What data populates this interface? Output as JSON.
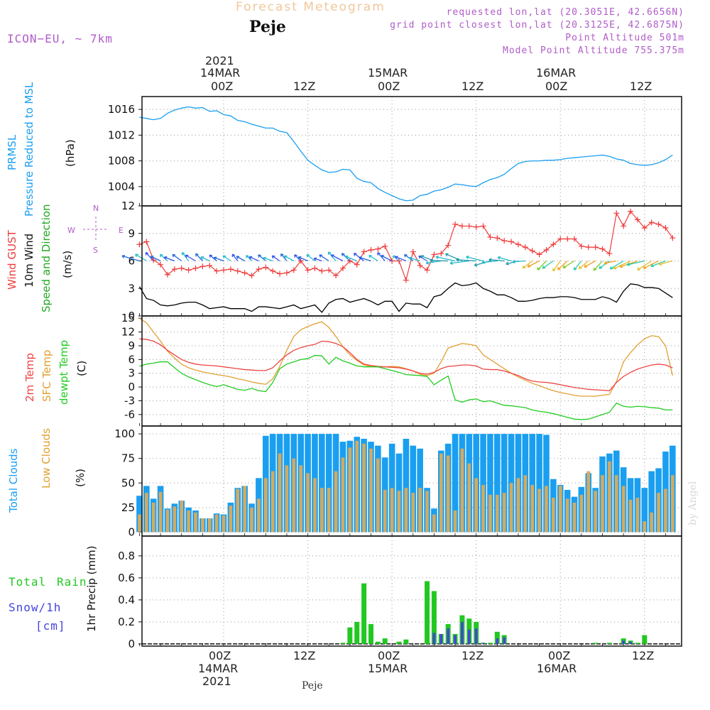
{
  "header": {
    "title": "Forecast Meteogram",
    "location": "Peje",
    "model": "ICON−EU, ~ 7km",
    "requested": "requested lon,lat (20.3051E, 42.6656N)",
    "grid_point": "grid point closest lon,lat (20.3125E, 42.6875N)",
    "point_altitude": "Point Altitude 501m",
    "model_altitude": "Model Point Altitude 755.375m"
  },
  "time_axis": {
    "top_year": "2021",
    "date_labels": [
      "14MAR",
      "15MAR",
      "16MAR"
    ],
    "hour_labels": [
      "00Z",
      "12Z",
      "00Z",
      "12Z",
      "00Z",
      "12Z"
    ],
    "bottom_date_labels": [
      "14MAR",
      "15MAR",
      "16MAR"
    ],
    "bottom_year": "2021",
    "footer": "Peje"
  },
  "panel_labels": {
    "pressure": [
      "PRMSL",
      "Pressure Reduced to MSL",
      "(hPa)"
    ],
    "wind": [
      "Wind GUST",
      "10m Wind",
      "Speed and Direction",
      "(m/s)"
    ],
    "compass": [
      "N",
      "W",
      "E",
      "S"
    ],
    "temp": [
      "2m Temp",
      "SFC Temp",
      "dewpt Temp",
      "(C)"
    ],
    "clouds": [
      "Total Clouds",
      "Low Clouds",
      "(%)"
    ],
    "precip": [
      "Total",
      "Rain",
      "Snow/1h",
      "[cm]",
      "1hr Precip (mm)"
    ]
  },
  "watermark": "by Angel",
  "colors": {
    "pressure": "#1a9ff0",
    "gust": "#ee3c3c",
    "wind": "#000000",
    "temp2m": "#ee4444",
    "sfc": "#e0a030",
    "dewpt": "#22cc22",
    "total_cloud": "#1a9ff0",
    "low_cloud": "#d4aa60",
    "rain": "#22c822",
    "snow": "#4444dd",
    "label_purple": "#b05cc8"
  },
  "chart_data": [
    {
      "type": "line",
      "name": "pressure",
      "ylabel": "PRMSL Pressure Reduced to MSL (hPa)",
      "ylim": [
        1001,
        1018
      ],
      "yticks": [
        1004,
        1008,
        1012,
        1016
      ],
      "x": [
        -12,
        -11,
        -10,
        -9,
        -8,
        -7,
        -6,
        -5,
        -4,
        -3,
        -2,
        -1,
        0,
        1,
        2,
        3,
        4,
        5,
        6,
        7,
        8,
        9,
        10,
        11,
        12,
        13,
        14,
        15,
        16,
        17,
        18,
        19,
        20,
        21,
        22,
        23,
        24,
        25,
        26,
        27,
        28,
        29,
        30,
        31,
        32,
        33,
        34,
        35,
        36,
        37,
        38,
        39,
        40,
        41,
        42,
        43,
        44,
        45,
        46,
        47,
        48,
        49,
        50,
        51,
        52,
        53,
        54,
        55,
        56,
        57,
        58,
        59,
        60,
        61,
        62,
        63,
        64
      ],
      "values": [
        1014.8,
        1014.6,
        1014.4,
        1014.6,
        1015.4,
        1015.9,
        1016.2,
        1016.4,
        1016.2,
        1016.3,
        1015.7,
        1015.8,
        1015.2,
        1015.0,
        1014.3,
        1014.1,
        1013.7,
        1013.4,
        1013.1,
        1013.1,
        1012.6,
        1012.4,
        1011.0,
        1009.5,
        1008.1,
        1007.3,
        1006.6,
        1006.2,
        1006.3,
        1006.7,
        1006.6,
        1005.3,
        1004.8,
        1004.6,
        1003.7,
        1003.1,
        1002.6,
        1002.1,
        1001.8,
        1001.9,
        1002.6,
        1002.8,
        1003.3,
        1003.5,
        1003.9,
        1004.4,
        1004.3,
        1004.1,
        1004.0,
        1004.6,
        1005.1,
        1005.4,
        1005.9,
        1006.8,
        1007.6,
        1007.9,
        1008.0,
        1008.0,
        1008.1,
        1008.1,
        1008.2,
        1008.4,
        1008.5,
        1008.6,
        1008.7,
        1008.8,
        1008.9,
        1008.7,
        1008.3,
        1008.1,
        1007.6,
        1007.4,
        1007.3,
        1007.4,
        1007.7,
        1008.2,
        1008.9
      ]
    },
    {
      "type": "line",
      "name": "wind",
      "ylabel": "Wind GUST / 10m Wind Speed and Direction (m/s)",
      "ylim": [
        0,
        12
      ],
      "yticks": [
        0,
        3,
        6,
        9,
        12
      ],
      "gust_x": [
        -12,
        -11,
        -10,
        -9,
        -8,
        -7,
        -6,
        -5,
        -4,
        -3,
        -2,
        -1,
        0,
        1,
        2,
        3,
        4,
        5,
        6,
        7,
        8,
        9,
        10,
        11,
        12,
        13,
        14,
        15,
        16,
        17,
        18,
        19,
        20,
        21,
        22,
        23,
        24,
        25,
        26,
        27,
        28,
        29,
        30,
        31,
        32,
        33,
        34,
        35,
        36,
        37,
        38,
        39,
        40,
        41,
        42,
        43,
        44,
        45,
        46,
        47,
        48,
        49,
        50,
        51,
        52,
        53,
        54,
        55,
        56,
        57,
        58,
        59,
        60,
        61,
        62,
        63,
        64
      ],
      "gust": [
        7.8,
        8.1,
        6.1,
        5.6,
        4.5,
        5.1,
        5.2,
        5.0,
        5.2,
        5.4,
        5.5,
        4.9,
        5.0,
        5.1,
        4.9,
        4.7,
        4.4,
        5.1,
        5.3,
        4.9,
        4.6,
        4.7,
        5.0,
        6.0,
        5.0,
        5.2,
        4.9,
        5.0,
        4.4,
        5.2,
        6.0,
        5.6,
        7.0,
        7.2,
        7.3,
        7.6,
        6.0,
        6.0,
        3.9,
        7.0,
        5.5,
        5.0,
        6.7,
        6.8,
        7.7,
        10.0,
        9.8,
        9.8,
        9.7,
        9.8,
        8.6,
        8.5,
        8.2,
        8.1,
        7.8,
        7.5,
        7.1,
        6.7,
        7.2,
        7.8,
        8.4,
        8.4,
        8.4,
        7.6,
        7.5,
        7.5,
        7.3,
        6.8,
        11.2,
        9.8,
        11.4,
        10.5,
        9.6,
        10.2,
        10.0,
        9.6,
        8.5
      ],
      "speed": [
        3.2,
        1.9,
        1.7,
        1.2,
        1.1,
        1.2,
        1.4,
        1.5,
        1.5,
        1.2,
        0.8,
        0.9,
        1.0,
        0.8,
        0.8,
        0.8,
        0.5,
        1.0,
        1.0,
        0.9,
        0.8,
        1.0,
        1.2,
        0.8,
        1.0,
        1.2,
        0.4,
        1.4,
        1.8,
        1.9,
        1.5,
        1.7,
        1.9,
        1.6,
        1.2,
        1.6,
        1.6,
        0.5,
        1.4,
        1.3,
        1.3,
        0.9,
        2.1,
        2.3,
        3.0,
        3.6,
        3.3,
        3.4,
        3.6,
        3.0,
        2.7,
        2.3,
        2.3,
        2.0,
        1.6,
        1.6,
        1.7,
        1.9,
        2.0,
        2.0,
        2.1,
        2.1,
        2.0,
        1.8,
        1.8,
        1.8,
        2.1,
        1.9,
        1.5,
        2.7,
        3.5,
        3.4,
        3.1,
        3.1,
        3.0,
        2.5,
        2.0
      ]
    },
    {
      "type": "line",
      "name": "temperature",
      "ylabel": "2m Temp / SFC Temp / dewpt Temp (C)",
      "ylim": [
        -8.5,
        15.5
      ],
      "yticks": [
        -6,
        -3,
        0,
        3,
        6,
        9,
        12,
        15
      ],
      "x": [
        -12,
        -11,
        -10,
        -9,
        -8,
        -7,
        -6,
        -5,
        -4,
        -3,
        -2,
        -1,
        0,
        1,
        2,
        3,
        4,
        5,
        6,
        7,
        8,
        9,
        10,
        11,
        12,
        13,
        14,
        15,
        16,
        17,
        18,
        19,
        20,
        21,
        22,
        23,
        24,
        25,
        26,
        27,
        28,
        29,
        30,
        31,
        32,
        33,
        34,
        35,
        36,
        37,
        38,
        39,
        40,
        41,
        42,
        43,
        44,
        45,
        46,
        47,
        48,
        49,
        50,
        51,
        52,
        53,
        54,
        55,
        56,
        57,
        58,
        59,
        60,
        61,
        62,
        63,
        64
      ],
      "temp2m": [
        10.5,
        10.4,
        10.0,
        9.2,
        8.0,
        7.0,
        6.0,
        5.4,
        5.0,
        4.8,
        4.7,
        4.6,
        4.4,
        4.2,
        4.0,
        3.8,
        3.7,
        3.6,
        3.6,
        4.2,
        5.7,
        7.0,
        8.0,
        8.6,
        9.0,
        9.3,
        10.0,
        9.9,
        9.5,
        8.8,
        7.5,
        6.0,
        5.0,
        4.7,
        4.5,
        4.4,
        4.3,
        4.2,
        3.9,
        3.5,
        3.0,
        2.8,
        3.2,
        4.0,
        4.5,
        4.6,
        4.8,
        4.8,
        4.6,
        3.9,
        3.8,
        3.8,
        3.5,
        3.0,
        2.5,
        1.8,
        1.3,
        1.1,
        1.0,
        0.8,
        0.5,
        0.2,
        -0.1,
        -0.3,
        -0.5,
        -0.6,
        -0.7,
        -0.8,
        1.0,
        2.3,
        3.2,
        3.9,
        4.4,
        4.8,
        5.0,
        4.8,
        4.2
      ],
      "sfc": [
        15.0,
        14.0,
        12.0,
        10.0,
        7.8,
        6.3,
        5.0,
        4.2,
        3.7,
        3.3,
        3.0,
        2.7,
        2.5,
        2.2,
        1.8,
        1.5,
        1.1,
        0.8,
        0.6,
        1.8,
        4.5,
        8.0,
        11.0,
        12.5,
        13.2,
        13.8,
        14.2,
        13.0,
        11.0,
        8.8,
        7.0,
        5.8,
        4.8,
        4.5,
        4.4,
        4.4,
        4.5,
        4.4,
        4.0,
        3.5,
        2.8,
        2.5,
        3.0,
        5.5,
        8.5,
        9.0,
        9.5,
        9.3,
        9.0,
        7.0,
        6.0,
        5.0,
        4.0,
        3.0,
        2.2,
        1.5,
        0.8,
        0.3,
        -0.3,
        -0.8,
        -1.2,
        -1.5,
        -1.8,
        -2.0,
        -2.0,
        -2.0,
        -1.8,
        -1.6,
        1.2,
        5.5,
        7.5,
        9.2,
        10.5,
        11.2,
        11.0,
        9.0,
        2.5
      ],
      "dewpt": [
        4.5,
        5.0,
        5.2,
        5.5,
        5.5,
        4.2,
        3.0,
        2.2,
        1.6,
        1.0,
        0.5,
        0.1,
        0.5,
        0.0,
        -0.5,
        -0.7,
        -0.3,
        -0.8,
        -1.0,
        1.0,
        4.0,
        5.0,
        5.5,
        6.0,
        6.2,
        6.9,
        6.8,
        5.0,
        6.5,
        5.7,
        5.2,
        4.6,
        4.4,
        4.4,
        4.4,
        4.0,
        3.6,
        3.2,
        2.7,
        2.6,
        2.5,
        2.3,
        0.5,
        1.5,
        2.4,
        -2.8,
        -3.3,
        -2.8,
        -2.6,
        -3.2,
        -3.0,
        -3.5,
        -4.0,
        -4.1,
        -4.3,
        -4.5,
        -5.0,
        -5.3,
        -5.5,
        -5.8,
        -6.2,
        -6.6,
        -7.0,
        -7.1,
        -7.0,
        -6.5,
        -6.0,
        -5.5,
        -3.5,
        -4.2,
        -4.4,
        -4.2,
        -4.3,
        -4.5,
        -4.6,
        -5.0,
        -5.0
      ],
      "labels": [
        "2m Temp",
        "SFC Temp",
        "dewpt Temp"
      ]
    },
    {
      "type": "bar",
      "name": "clouds",
      "ylabel": "Total Clouds / Low Clouds (%)",
      "ylim": [
        -4,
        108
      ],
      "yticks": [
        0,
        25,
        50,
        75,
        100
      ],
      "x": [
        -12,
        -11,
        -10,
        -9,
        -8,
        -7,
        -6,
        -5,
        -4,
        -3,
        -2,
        -1,
        0,
        1,
        2,
        3,
        4,
        5,
        6,
        7,
        8,
        9,
        10,
        11,
        12,
        13,
        14,
        15,
        16,
        17,
        18,
        19,
        20,
        21,
        22,
        23,
        24,
        25,
        26,
        27,
        28,
        29,
        30,
        31,
        32,
        33,
        34,
        35,
        36,
        37,
        38,
        39,
        40,
        41,
        42,
        43,
        44,
        45,
        46,
        47,
        48,
        49,
        50,
        51,
        52,
        53,
        54,
        55,
        56,
        57,
        58,
        59,
        60,
        61,
        62,
        63,
        64
      ],
      "total": [
        37,
        47,
        34,
        47,
        24,
        29,
        32,
        25,
        22,
        14,
        14,
        19,
        18,
        30,
        45,
        47,
        29,
        55,
        98,
        100,
        100,
        100,
        100,
        100,
        100,
        100,
        100,
        100,
        100,
        92,
        93,
        97,
        95,
        92,
        88,
        76,
        90,
        80,
        95,
        88,
        85,
        45,
        24,
        83,
        90,
        100,
        100,
        100,
        100,
        100,
        100,
        100,
        100,
        100,
        100,
        100,
        100,
        100,
        99,
        54,
        48,
        43,
        36,
        46,
        60,
        45,
        77,
        80,
        83,
        66,
        55,
        55,
        45,
        62,
        65,
        82,
        88
      ],
      "low": [
        18,
        40,
        30,
        41,
        23,
        26,
        32,
        22,
        20,
        14,
        14,
        18,
        17,
        27,
        44,
        47,
        25,
        34,
        55,
        62,
        80,
        68,
        75,
        68,
        60,
        55,
        45,
        45,
        62,
        76,
        86,
        93,
        90,
        85,
        75,
        43,
        45,
        42,
        45,
        40,
        45,
        42,
        18,
        80,
        78,
        22,
        85,
        70,
        55,
        48,
        38,
        38,
        40,
        50,
        55,
        58,
        48,
        44,
        47,
        35,
        47,
        34,
        30,
        38,
        62,
        42,
        58,
        72,
        58,
        47,
        33,
        35,
        11,
        20,
        40,
        44,
        58
      ],
      "labels": [
        "Total Clouds",
        "Low Clouds"
      ]
    },
    {
      "type": "bar",
      "name": "precipitation",
      "ylabel": "1hr Precip (mm)",
      "ylim": [
        -0.02,
        0.98
      ],
      "yticks": [
        0,
        0.2,
        0.4,
        0.6,
        0.8
      ],
      "x": [
        -12,
        -11,
        -10,
        -9,
        -8,
        -7,
        -6,
        -5,
        -4,
        -3,
        -2,
        -1,
        0,
        1,
        2,
        3,
        4,
        5,
        6,
        7,
        8,
        9,
        10,
        11,
        12,
        13,
        14,
        15,
        16,
        17,
        18,
        19,
        20,
        21,
        22,
        23,
        24,
        25,
        26,
        27,
        28,
        29,
        30,
        31,
        32,
        33,
        34,
        35,
        36,
        37,
        38,
        39,
        40,
        41,
        42,
        43,
        44,
        45,
        46,
        47,
        48,
        49,
        50,
        51,
        52,
        53,
        54,
        55,
        56,
        57,
        58,
        59,
        60,
        61,
        62,
        63,
        64
      ],
      "rain": [
        0,
        0,
        0,
        0,
        0,
        0,
        0,
        0,
        0,
        0,
        0,
        0,
        0,
        0,
        0,
        0,
        0,
        0,
        0,
        0,
        0,
        0,
        0,
        0,
        0,
        0,
        0,
        0,
        0,
        0.01,
        0.15,
        0.2,
        0.55,
        0.18,
        0.02,
        0.05,
        0,
        0.02,
        0.04,
        0,
        0,
        0.57,
        0.48,
        0.09,
        0.18,
        0.09,
        0.26,
        0.23,
        0.2,
        0.01,
        0.01,
        0.11,
        0.08,
        0,
        0,
        0,
        0,
        0,
        0,
        0,
        0,
        0,
        0,
        0,
        0,
        0.01,
        0,
        0.01,
        0,
        0.05,
        0.03,
        0.01,
        0.08,
        0,
        0,
        0,
        0
      ],
      "snow": [
        0,
        0,
        0,
        0,
        0,
        0,
        0,
        0,
        0,
        0,
        0,
        0,
        0,
        0,
        0,
        0,
        0,
        0,
        0,
        0,
        0,
        0,
        0,
        0,
        0,
        0,
        0,
        0,
        0,
        0,
        0,
        0,
        0,
        0,
        0,
        0,
        0,
        0,
        0,
        0,
        0,
        0,
        0.1,
        0.09,
        0.14,
        0.08,
        0.2,
        0.13,
        0.14,
        0.01,
        0,
        0.05,
        0.06,
        0,
        0,
        0,
        0,
        0,
        0,
        0,
        0,
        0,
        0,
        0,
        0,
        0,
        0,
        0,
        0,
        0.03,
        0.02,
        0,
        0,
        0,
        0,
        0,
        0
      ],
      "labels": [
        "Total Rain",
        "Snow/1h [cm]"
      ]
    }
  ]
}
